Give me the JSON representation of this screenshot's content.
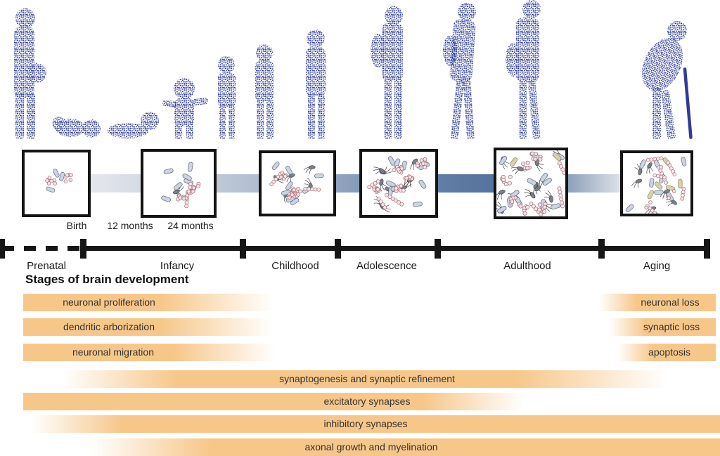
{
  "heading": "Stages of brain development",
  "timeline": {
    "milestones": [
      "Birth",
      "12 months",
      "24 months"
    ],
    "stages": [
      "Prenatal",
      "Infancy",
      "Childhood",
      "Adolescence",
      "Adulthood",
      "Aging"
    ]
  },
  "bars": [
    {
      "label": "neuronal proliferation"
    },
    {
      "label": "dendritic arborization"
    },
    {
      "label": "neuronal migration"
    },
    {
      "label": "neuronal loss"
    },
    {
      "label": "synaptic loss"
    },
    {
      "label": "apoptosis"
    },
    {
      "label": "synaptogenesis and synaptic refinement"
    },
    {
      "label": "excitatory synapses"
    },
    {
      "label": "inhibitory synapses"
    },
    {
      "label": "axonal growth and myelination"
    }
  ],
  "figures": [
    "pregnant woman",
    "newborn lying",
    "crawling infant",
    "toddler standing",
    "young child",
    "child",
    "preteen",
    "adolescent with backpack",
    "young adult walking",
    "adult with bag",
    "elderly person with cane"
  ],
  "colors": {
    "bar_orange": "#f7c78a",
    "figure_blue": "#2e3c96",
    "band_slate_blue": "#54729c",
    "axis_black": "#161616"
  }
}
